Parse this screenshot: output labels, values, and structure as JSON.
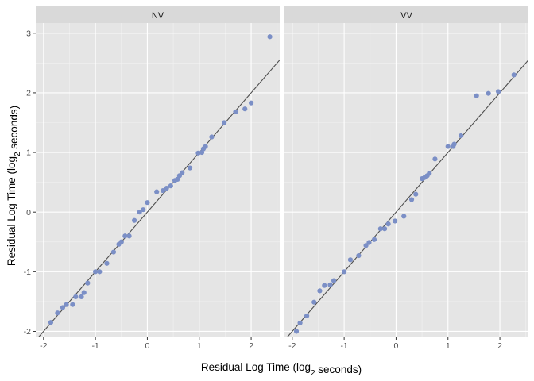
{
  "chart_data": {
    "type": "scatter",
    "xlabel": {
      "prefix": "Residual Log Time (log",
      "sub": "2",
      "suffix": " seconds)"
    },
    "ylabel": {
      "prefix": "Residual Log Time (log",
      "sub": "2",
      "suffix": " seconds)"
    },
    "xlim": [
      -2.15,
      2.55
    ],
    "ylim": [
      -2.1,
      3.17
    ],
    "x_ticks": [
      -2,
      -1,
      0,
      1,
      2
    ],
    "x_tick_labels": [
      "-2",
      "-1",
      "0",
      "1",
      "2"
    ],
    "y_ticks": [
      -2,
      -1,
      0,
      1,
      2,
      3
    ],
    "y_tick_labels": [
      "-2",
      "-1",
      "0",
      "1",
      "2",
      "3"
    ],
    "grid": true,
    "reference_line": {
      "intercept": 0,
      "slope": 1
    },
    "point_color": "#7b8fc6",
    "line_color": "#4d4d4d",
    "panel_bg": "#e5e5e5",
    "strip_bg": "#d9d9d9",
    "panels": [
      {
        "name": "NV",
        "points": [
          [
            -1.86,
            -1.85
          ],
          [
            -1.73,
            -1.69
          ],
          [
            -1.63,
            -1.6
          ],
          [
            -1.56,
            -1.55
          ],
          [
            -1.44,
            -1.55
          ],
          [
            -1.38,
            -1.42
          ],
          [
            -1.27,
            -1.42
          ],
          [
            -1.22,
            -1.35
          ],
          [
            -1.15,
            -1.19
          ],
          [
            -1.0,
            -1.0
          ],
          [
            -0.92,
            -1.0
          ],
          [
            -0.78,
            -0.86
          ],
          [
            -0.65,
            -0.67
          ],
          [
            -0.55,
            -0.54
          ],
          [
            -0.5,
            -0.5
          ],
          [
            -0.43,
            -0.4
          ],
          [
            -0.35,
            -0.4
          ],
          [
            -0.25,
            -0.14
          ],
          [
            -0.15,
            0.0
          ],
          [
            -0.08,
            0.04
          ],
          [
            0.0,
            0.16
          ],
          [
            0.18,
            0.34
          ],
          [
            0.3,
            0.36
          ],
          [
            0.37,
            0.4
          ],
          [
            0.45,
            0.44
          ],
          [
            0.53,
            0.53
          ],
          [
            0.58,
            0.55
          ],
          [
            0.62,
            0.61
          ],
          [
            0.67,
            0.66
          ],
          [
            0.82,
            0.74
          ],
          [
            0.98,
            0.99
          ],
          [
            1.05,
            1.0
          ],
          [
            1.08,
            1.06
          ],
          [
            1.12,
            1.1
          ],
          [
            1.24,
            1.26
          ],
          [
            1.48,
            1.5
          ],
          [
            1.7,
            1.68
          ],
          [
            1.88,
            1.73
          ],
          [
            2.0,
            1.83
          ],
          [
            2.36,
            2.94
          ]
        ]
      },
      {
        "name": "VV",
        "points": [
          [
            -1.92,
            -2.0
          ],
          [
            -1.85,
            -1.86
          ],
          [
            -1.72,
            -1.74
          ],
          [
            -1.58,
            -1.51
          ],
          [
            -1.47,
            -1.32
          ],
          [
            -1.38,
            -1.23
          ],
          [
            -1.27,
            -1.22
          ],
          [
            -1.2,
            -1.15
          ],
          [
            -1.0,
            -1.0
          ],
          [
            -0.88,
            -0.8
          ],
          [
            -0.72,
            -0.73
          ],
          [
            -0.58,
            -0.56
          ],
          [
            -0.52,
            -0.51
          ],
          [
            -0.42,
            -0.46
          ],
          [
            -0.3,
            -0.28
          ],
          [
            -0.22,
            -0.28
          ],
          [
            -0.15,
            -0.2
          ],
          [
            -0.02,
            -0.15
          ],
          [
            0.15,
            -0.07
          ],
          [
            0.3,
            0.21
          ],
          [
            0.38,
            0.3
          ],
          [
            0.5,
            0.56
          ],
          [
            0.55,
            0.58
          ],
          [
            0.6,
            0.61
          ],
          [
            0.64,
            0.65
          ],
          [
            0.75,
            0.89
          ],
          [
            1.0,
            1.1
          ],
          [
            1.1,
            1.1
          ],
          [
            1.12,
            1.14
          ],
          [
            1.25,
            1.28
          ],
          [
            1.55,
            1.95
          ],
          [
            1.78,
            1.99
          ],
          [
            1.97,
            2.02
          ],
          [
            2.27,
            2.3
          ]
        ]
      }
    ]
  }
}
